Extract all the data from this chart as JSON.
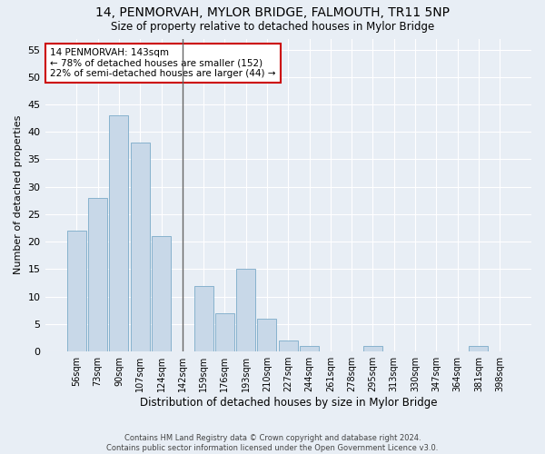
{
  "title_line1": "14, PENMORVAH, MYLOR BRIDGE, FALMOUTH, TR11 5NP",
  "title_line2": "Size of property relative to detached houses in Mylor Bridge",
  "xlabel": "Distribution of detached houses by size in Mylor Bridge",
  "ylabel": "Number of detached properties",
  "categories": [
    "56sqm",
    "73sqm",
    "90sqm",
    "107sqm",
    "124sqm",
    "142sqm",
    "159sqm",
    "176sqm",
    "193sqm",
    "210sqm",
    "227sqm",
    "244sqm",
    "261sqm",
    "278sqm",
    "295sqm",
    "313sqm",
    "330sqm",
    "347sqm",
    "364sqm",
    "381sqm",
    "398sqm"
  ],
  "values": [
    22,
    28,
    43,
    38,
    21,
    0,
    12,
    7,
    15,
    6,
    2,
    1,
    0,
    0,
    1,
    0,
    0,
    0,
    0,
    1,
    0
  ],
  "highlight_index": 5,
  "bar_color": "#c8d8e8",
  "bar_edge_color": "#7aaac8",
  "highlight_line_color": "#666666",
  "annotation_text": "14 PENMORVAH: 143sqm\n← 78% of detached houses are smaller (152)\n22% of semi-detached houses are larger (44) →",
  "annotation_box_color": "#ffffff",
  "annotation_box_edge_color": "#cc0000",
  "ylim": [
    0,
    57
  ],
  "yticks": [
    0,
    5,
    10,
    15,
    20,
    25,
    30,
    35,
    40,
    45,
    50,
    55
  ],
  "background_color": "#e8eef5",
  "grid_color": "#ffffff",
  "footer_line1": "Contains HM Land Registry data © Crown copyright and database right 2024.",
  "footer_line2": "Contains public sector information licensed under the Open Government Licence v3.0."
}
